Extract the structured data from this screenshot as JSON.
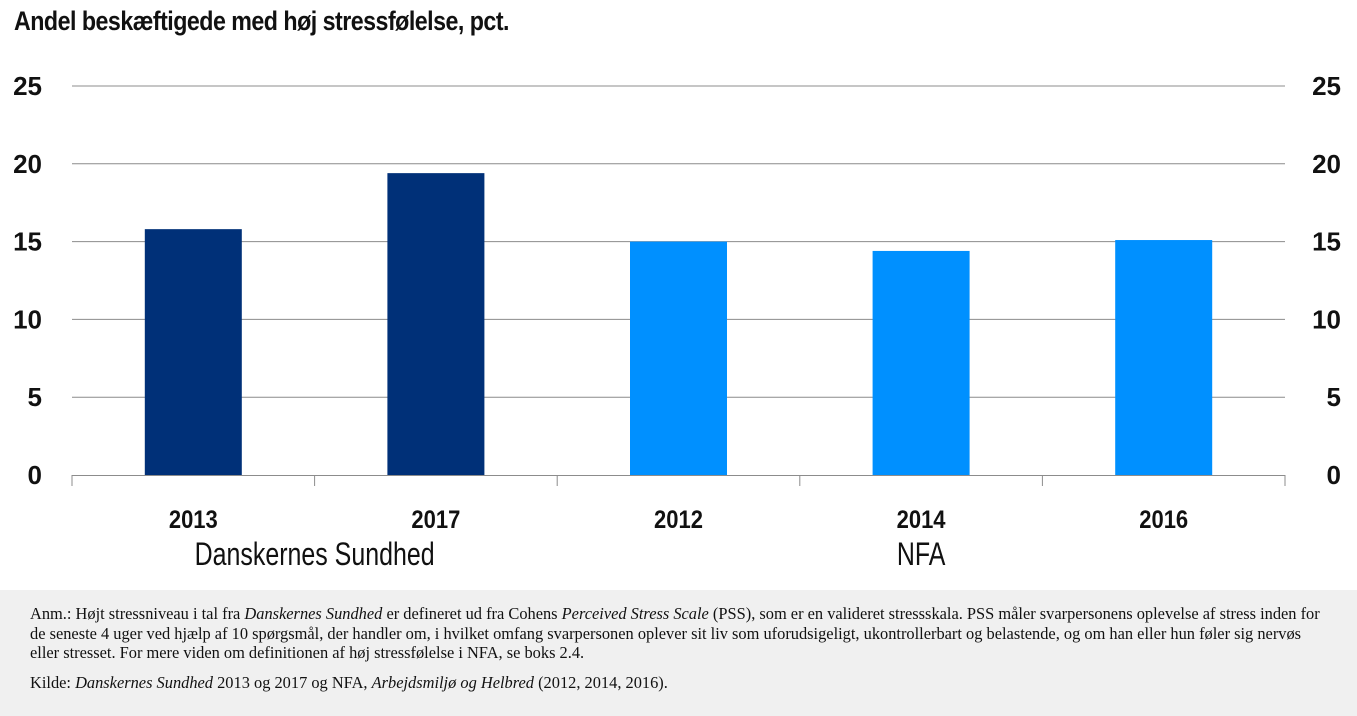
{
  "title": "Andel beskæftigede med høj stressfølelse, pct.",
  "chart_data": {
    "type": "bar",
    "title": "Andel beskæftigede med høj stressfølelse, pct.",
    "ylim": [
      0,
      25
    ],
    "yticks": [
      "0",
      "5",
      "10",
      "15",
      "20",
      "25"
    ],
    "grid": true,
    "categories": [
      "2013",
      "2017",
      "2012",
      "2014",
      "2016"
    ],
    "values": [
      15.8,
      19.4,
      15.0,
      14.4,
      15.1
    ],
    "groups": [
      {
        "label": "Danskernes Sundhed",
        "categories": [
          "2013",
          "2017"
        ],
        "color": "#003078"
      },
      {
        "label": "NFA",
        "categories": [
          "2012",
          "2014",
          "2016"
        ],
        "color": "#0090ff"
      }
    ],
    "colors": [
      "#003078",
      "#003078",
      "#0090ff",
      "#0090ff",
      "#0090ff"
    ]
  },
  "note": {
    "anm_parts": [
      {
        "text": "Anm.: Højt stressniveau i tal fra "
      },
      {
        "text": "Danskernes Sundhed",
        "italic": true
      },
      {
        "text": " er defineret ud fra Cohens "
      },
      {
        "text": "Perceived Stress Scale",
        "italic": true
      },
      {
        "text": " (PSS), som er en valideret stressskala. PSS måler svarpersonens oplevelse af stress inden for de seneste 4 uger ved hjælp af 10 spørgsmål, der handler om, i hvilket omfang svarpersonen oplever sit liv som uforudsigeligt, ukontrollerbart og belastende, og om han eller hun føler sig nervøs eller stresset. For mere viden om definitionen af høj stressfølelse i NFA, se boks 2.4."
      }
    ],
    "kilde_parts": [
      {
        "text": "Kilde: "
      },
      {
        "text": "Danskernes Sundhed",
        "italic": true
      },
      {
        "text": " 2013 og 2017 og NFA, "
      },
      {
        "text": "Arbejdsmiljø og Helbred",
        "italic": true
      },
      {
        "text": " (2012, 2014, 2016)."
      }
    ]
  }
}
